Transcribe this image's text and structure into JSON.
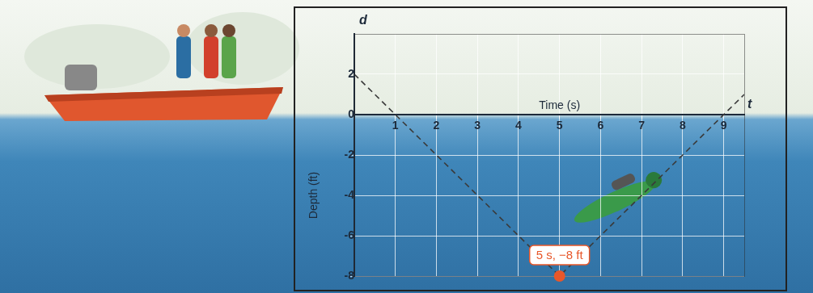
{
  "chart_data": {
    "type": "line",
    "x_label": "Time (s)",
    "y_label": "Depth (ft)",
    "x_name": "t",
    "y_name": "d",
    "x": [
      0,
      5,
      9.5
    ],
    "values": [
      2,
      -8,
      1
    ],
    "color": "#3a3a3a",
    "line_style": "dashed",
    "xlim": [
      0,
      9.5
    ],
    "xticks": [
      1,
      2,
      3,
      4,
      5,
      6,
      7,
      8,
      9
    ],
    "ylim": [
      -8,
      4
    ],
    "yticks": [
      -8,
      -6,
      -4,
      -2,
      0,
      2
    ],
    "grid": true,
    "annotation": {
      "text": "5 s, −8 ft",
      "x": 5,
      "y": -8,
      "color": "#e8572a"
    }
  }
}
